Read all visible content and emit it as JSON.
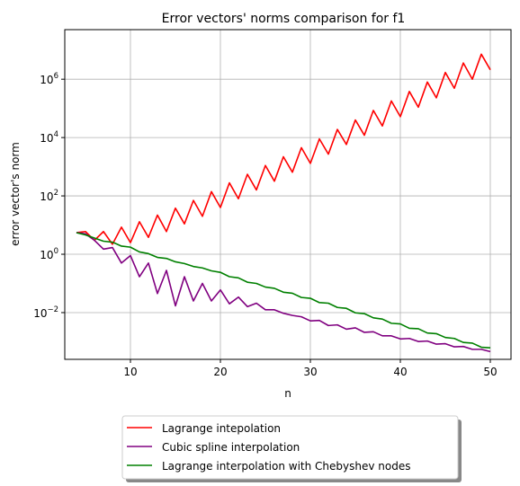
{
  "chart_data": {
    "type": "line",
    "title": "Error vectors' norms comparison for f1",
    "xlabel": "n",
    "ylabel": "error vector's norm",
    "yscale": "log",
    "xlim": [
      2.7,
      52.3
    ],
    "ylim": [
      0.00025,
      50000000
    ],
    "grid": true,
    "legend_placement": "bottom-center-below",
    "xticks": [
      10,
      20,
      30,
      40,
      50
    ],
    "xtick_labels": [
      "10",
      "20",
      "30",
      "40",
      "50"
    ],
    "yticks": [
      0.01,
      1,
      100,
      10000,
      1000000
    ],
    "ytick_labels": [
      "10",
      "10",
      "10",
      "10",
      "10"
    ],
    "ytick_exponents": [
      "−2",
      "0",
      "2",
      "4",
      "6"
    ],
    "x": [
      4,
      5,
      6,
      7,
      8,
      9,
      10,
      11,
      12,
      13,
      14,
      15,
      16,
      17,
      18,
      19,
      20,
      21,
      22,
      23,
      24,
      25,
      26,
      27,
      28,
      29,
      30,
      31,
      32,
      33,
      34,
      35,
      36,
      37,
      38,
      39,
      40,
      41,
      42,
      43,
      44,
      45,
      46,
      47,
      48,
      49,
      50
    ],
    "series": [
      {
        "name": "Lagrange intepolation",
        "color": "#ff0000",
        "values": [
          5.5,
          6.0,
          3.0,
          6.0,
          2.2,
          8.5,
          2.5,
          13,
          3.8,
          22,
          6,
          38,
          11,
          70,
          20,
          140,
          40,
          280,
          80,
          550,
          160,
          1100,
          320,
          2200,
          650,
          4500,
          1300,
          9000,
          2700,
          19000,
          5800,
          40000,
          12000,
          85000,
          25000,
          180000,
          52000,
          380000,
          110000,
          800000,
          230000,
          1700000,
          490000,
          3600000,
          1000000,
          7200000,
          2100000
        ]
      },
      {
        "name": "Cubic spline interpolation",
        "color": "#800080",
        "values": [
          5.5,
          5.0,
          3.0,
          1.5,
          1.7,
          0.5,
          0.9,
          0.17,
          0.5,
          0.045,
          0.28,
          0.017,
          0.17,
          0.025,
          0.1,
          0.025,
          0.06,
          0.02,
          0.034,
          0.016,
          0.021,
          0.0125,
          0.0125,
          0.0095,
          0.008,
          0.0072,
          0.0052,
          0.0054,
          0.0036,
          0.0038,
          0.0027,
          0.003,
          0.0021,
          0.0022,
          0.0016,
          0.0016,
          0.00125,
          0.0013,
          0.00102,
          0.00106,
          0.00083,
          0.00086,
          0.00067,
          0.00069,
          0.00055,
          0.00055,
          0.00046
        ]
      },
      {
        "name": "Lagrange interpolation with Chebyshev nodes",
        "color": "#008000",
        "values": [
          5.5,
          4.6,
          3.6,
          2.8,
          2.6,
          1.9,
          1.75,
          1.2,
          1.05,
          0.78,
          0.72,
          0.55,
          0.48,
          0.38,
          0.34,
          0.27,
          0.24,
          0.17,
          0.155,
          0.11,
          0.1,
          0.075,
          0.068,
          0.05,
          0.046,
          0.033,
          0.031,
          0.022,
          0.021,
          0.015,
          0.014,
          0.0098,
          0.0092,
          0.0066,
          0.006,
          0.0043,
          0.0041,
          0.0029,
          0.0028,
          0.002,
          0.0019,
          0.0014,
          0.0013,
          0.00095,
          0.0009,
          0.00065,
          0.00062
        ]
      }
    ]
  }
}
